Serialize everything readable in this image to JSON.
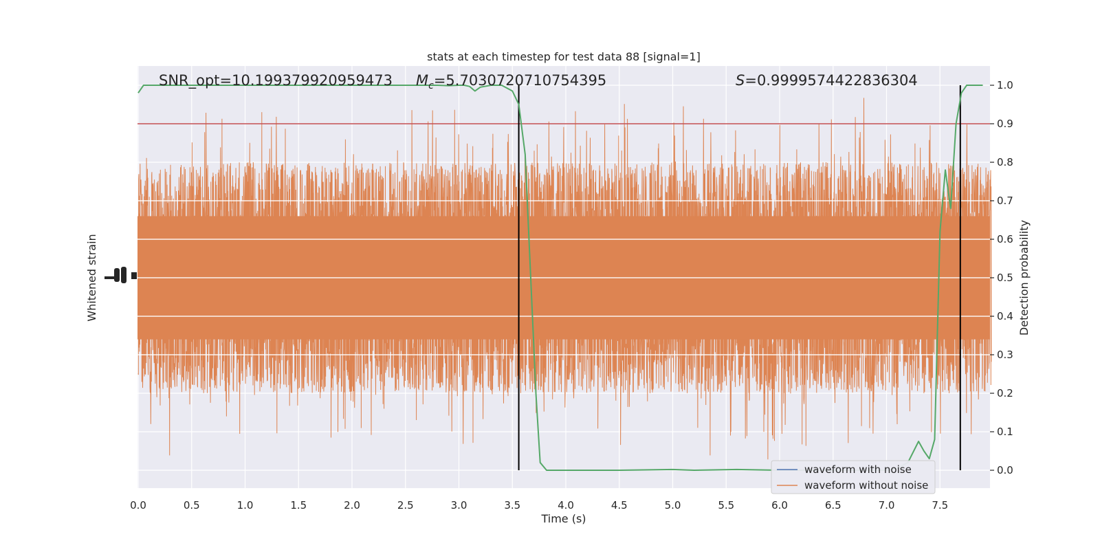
{
  "chart_data": {
    "type": "line",
    "title": "stats at each timestep for test data 88 [signal=1]",
    "xlabel": "Time (s)",
    "ylabel_left": "Whitened strain",
    "ylabel_right": "Detection probability",
    "xlim": [
      0.0,
      8.0
    ],
    "ylim_right": [
      -0.05,
      1.05
    ],
    "x_ticks": [
      "0.0",
      "0.5",
      "1.0",
      "1.5",
      "2.0",
      "2.5",
      "3.0",
      "3.5",
      "4.0",
      "4.5",
      "5.0",
      "5.5",
      "6.0",
      "6.5",
      "7.0",
      "7.5"
    ],
    "y_ticks_right": [
      "0.0",
      "0.1",
      "0.2",
      "0.3",
      "0.4",
      "0.5",
      "0.6",
      "0.7",
      "0.8",
      "0.9",
      "1.0"
    ],
    "grid": true,
    "legend_position": "lower right",
    "annotations": {
      "snr": "SNR_opt=10.199379920959473",
      "mc_symbol": "M",
      "mc_sub": "c",
      "mc_value": "=5.7030720710754395",
      "s_symbol": "S",
      "s_value": "=0.9999574422836304"
    },
    "threshold": {
      "y": 0.9,
      "color": "#c44e52"
    },
    "vertical_markers": [
      3.56,
      7.69
    ],
    "series": [
      {
        "name": "waveform with noise",
        "color": "#4c72b0",
        "note_values": "hidden behind orange trace"
      },
      {
        "name": "waveform without noise",
        "color": "#dd8452",
        "kind": "dense noise trace",
        "center": 0.5,
        "approx_half_range": [
          0.15,
          0.45
        ]
      },
      {
        "color": "#55a868",
        "x": [
          0.0,
          0.05,
          0.1,
          0.2,
          0.3,
          0.4,
          0.5,
          0.6,
          0.7,
          0.8,
          0.9,
          1.0,
          1.2,
          1.4,
          1.6,
          1.8,
          2.0,
          2.2,
          2.4,
          2.6,
          2.7,
          2.8,
          2.9,
          3.0,
          3.05,
          3.1,
          3.15,
          3.2,
          3.3,
          3.4,
          3.5,
          3.56,
          3.62,
          3.68,
          3.72,
          3.76,
          3.82,
          3.9,
          4.0,
          4.2,
          4.5,
          5.0,
          5.2,
          5.6,
          6.0,
          6.5,
          7.0,
          7.1,
          7.2,
          7.3,
          7.35,
          7.4,
          7.45,
          7.5,
          7.55,
          7.6,
          7.65,
          7.7,
          7.75,
          7.8,
          7.85,
          7.9
        ],
        "y": [
          0.98,
          1.0,
          1.0,
          1.0,
          1.0,
          1.0,
          1.0,
          1.0,
          1.0,
          1.0,
          1.0,
          1.0,
          1.0,
          1.0,
          1.0,
          1.0,
          1.0,
          1.0,
          1.0,
          1.0,
          1.0,
          1.0,
          0.999,
          1.0,
          1.0,
          0.997,
          0.985,
          0.995,
          1.0,
          1.0,
          0.985,
          0.95,
          0.82,
          0.45,
          0.2,
          0.02,
          0.0,
          0.0,
          0.0,
          0.0,
          0.0,
          0.002,
          0.0,
          0.002,
          0.0,
          0.0,
          0.0,
          0.005,
          0.02,
          0.075,
          0.05,
          0.03,
          0.08,
          0.62,
          0.78,
          0.68,
          0.9,
          0.98,
          1.0,
          1.0,
          1.0,
          1.0
        ]
      }
    ]
  }
}
